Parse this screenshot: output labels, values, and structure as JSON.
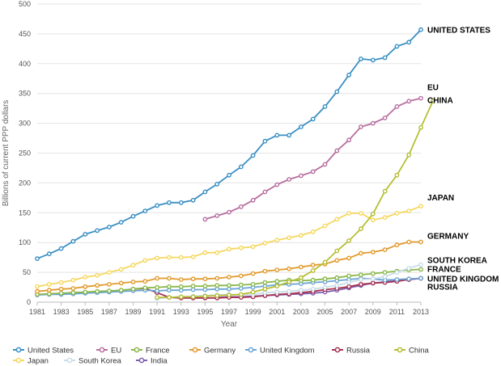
{
  "chart_data": {
    "type": "line",
    "title": "",
    "xlabel": "Year",
    "ylabel": "Billions of current PPP dollars",
    "xlim": [
      1981,
      2013
    ],
    "ylim": [
      0,
      500
    ],
    "x_ticks": [
      1981,
      1983,
      1985,
      1987,
      1989,
      1991,
      1993,
      1995,
      1997,
      1999,
      2001,
      2003,
      2005,
      2007,
      2009,
      2011,
      2013
    ],
    "y_ticks": [
      0,
      50,
      100,
      150,
      200,
      250,
      300,
      350,
      400,
      450,
      500
    ],
    "grid": "horizontal",
    "legend_position": "bottom",
    "series": [
      {
        "name": "United States",
        "color": "#3a8fc4",
        "end_label": "UNITED STATES",
        "start": 1981,
        "values": [
          73,
          81,
          90,
          102,
          114,
          120,
          126,
          134,
          144,
          153,
          162,
          167,
          167,
          171,
          185,
          198,
          213,
          227,
          246,
          270,
          280,
          280,
          294,
          307,
          328,
          353,
          381,
          408,
          406,
          410,
          429,
          436,
          457
        ]
      },
      {
        "name": "EU",
        "color": "#b86fa0",
        "end_label": "EU",
        "start": 1995,
        "values": [
          139,
          145,
          151,
          160,
          171,
          185,
          197,
          206,
          212,
          219,
          231,
          254,
          272,
          294,
          300,
          309,
          328,
          337,
          342
        ]
      },
      {
        "name": "China",
        "color": "#b5be33",
        "end_label": "CHINA",
        "start": 1991,
        "values": [
          8,
          8,
          9,
          9,
          10,
          11,
          12,
          13,
          17,
          22,
          27,
          34,
          41,
          53,
          67,
          86,
          103,
          123,
          148,
          186,
          213,
          247,
          293,
          337
        ]
      },
      {
        "name": "Japan",
        "color": "#f5d860",
        "end_label": "JAPAN",
        "start": 1981,
        "values": [
          26,
          30,
          33,
          37,
          42,
          45,
          50,
          55,
          62,
          70,
          74,
          75,
          75,
          76,
          83,
          83,
          89,
          91,
          93,
          99,
          104,
          108,
          112,
          118,
          128,
          139,
          149,
          149,
          138,
          142,
          149,
          153,
          161
        ]
      },
      {
        "name": "Germany",
        "color": "#e39a2c",
        "end_label": "GERMANY",
        "start": 1981,
        "values": [
          18,
          20,
          22,
          23,
          26,
          28,
          30,
          32,
          34,
          35,
          40,
          40,
          38,
          39,
          39,
          40,
          42,
          44,
          48,
          52,
          54,
          56,
          59,
          62,
          64,
          70,
          74,
          82,
          84,
          88,
          96,
          101,
          101
        ]
      },
      {
        "name": "South Korea",
        "color": "#c9dde8",
        "end_label": "SOUTH KOREA",
        "start": 1991,
        "values": [
          6,
          8,
          9,
          10,
          11,
          12,
          13,
          12,
          13,
          16,
          17,
          18,
          20,
          22,
          25,
          28,
          33,
          38,
          39,
          43,
          50,
          57,
          63
        ]
      },
      {
        "name": "France",
        "color": "#8ab84a",
        "end_label": "FRANCE",
        "start": 1981,
        "values": [
          13,
          14,
          15,
          16,
          17,
          18,
          19,
          20,
          22,
          24,
          25,
          26,
          26,
          27,
          27,
          28,
          28,
          29,
          30,
          33,
          35,
          37,
          36,
          37,
          39,
          41,
          44,
          46,
          48,
          50,
          52,
          54,
          55
        ]
      },
      {
        "name": "United Kingdom",
        "color": "#6aa5d6",
        "end_label": "UNITED KINGDOM",
        "start": 1981,
        "values": [
          12,
          13,
          13,
          14,
          15,
          16,
          17,
          18,
          19,
          20,
          19,
          20,
          20,
          21,
          21,
          22,
          22,
          23,
          25,
          27,
          29,
          30,
          31,
          33,
          34,
          36,
          38,
          40,
          39,
          37,
          38,
          39,
          40
        ]
      },
      {
        "name": "Russia",
        "color": "#a83152",
        "end_label": "RUSSIA",
        "start": 1989,
        "values": [
          22,
          23,
          16,
          8,
          7,
          7,
          7,
          7,
          8,
          8,
          9,
          11,
          13,
          14,
          16,
          18,
          21,
          23,
          26,
          30,
          32,
          33,
          35,
          38,
          40
        ]
      },
      {
        "name": "India",
        "color": "#7c5fb0",
        "end_label": "",
        "start": 1996,
        "values": [
          8,
          9,
          9,
          10,
          11,
          12,
          13,
          14,
          15,
          17,
          20,
          24,
          28,
          32,
          34,
          36,
          38,
          40
        ]
      }
    ]
  }
}
